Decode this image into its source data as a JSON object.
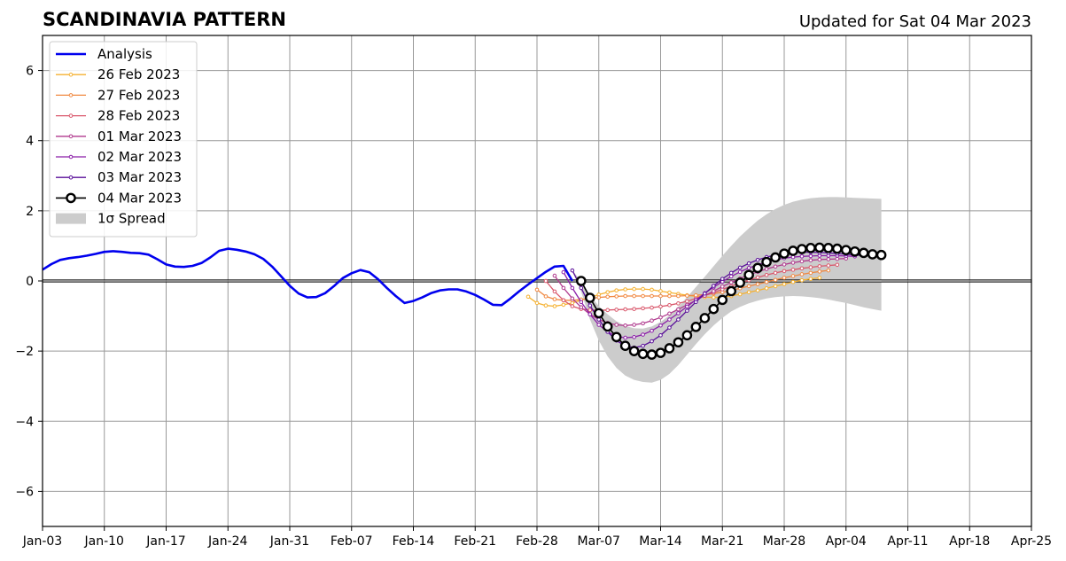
{
  "chart_data": {
    "type": "line",
    "title": "SCANDINAVIA PATTERN",
    "subtitle": "Updated for Sat 04 Mar 2023",
    "ylim": [
      -7,
      7
    ],
    "yticks": [
      -6,
      -4,
      -2,
      0,
      2,
      4,
      6
    ],
    "ytick_labels": [
      "−6",
      "−4",
      "−2",
      "0",
      "2",
      "4",
      "6"
    ],
    "xlim": [
      "2023-01-03",
      "2023-04-25"
    ],
    "xticks": [
      "2023-01-03",
      "2023-01-10",
      "2023-01-17",
      "2023-01-24",
      "2023-01-31",
      "2023-02-07",
      "2023-02-14",
      "2023-02-21",
      "2023-02-28",
      "2023-03-07",
      "2023-03-14",
      "2023-03-21",
      "2023-03-28",
      "2023-04-04",
      "2023-04-11",
      "2023-04-18",
      "2023-04-25"
    ],
    "xtick_labels": [
      "Jan-03",
      "Jan-10",
      "Jan-17",
      "Jan-24",
      "Jan-31",
      "Feb-07",
      "Feb-14",
      "Feb-21",
      "Feb-28",
      "Mar-07",
      "Mar-14",
      "Mar-21",
      "Mar-28",
      "Apr-04",
      "Apr-11",
      "Apr-18",
      "Apr-25"
    ],
    "grid": true,
    "legend_position": "upper-left",
    "colors": {
      "analysis": "#0000ee",
      "spread": "#cccccc",
      "grid": "#999999"
    },
    "series": [
      {
        "name": "Analysis",
        "color": "#0000ee",
        "style": "thick-line",
        "x": [
          "2023-01-03",
          "2023-01-04",
          "2023-01-05",
          "2023-01-06",
          "2023-01-07",
          "2023-01-08",
          "2023-01-09",
          "2023-01-10",
          "2023-01-11",
          "2023-01-12",
          "2023-01-13",
          "2023-01-14",
          "2023-01-15",
          "2023-01-16",
          "2023-01-17",
          "2023-01-18",
          "2023-01-19",
          "2023-01-20",
          "2023-01-21",
          "2023-01-22",
          "2023-01-23",
          "2023-01-24",
          "2023-01-25",
          "2023-01-26",
          "2023-01-27",
          "2023-01-28",
          "2023-01-29",
          "2023-01-30",
          "2023-01-31",
          "2023-02-01",
          "2023-02-02",
          "2023-02-03",
          "2023-02-04",
          "2023-02-05",
          "2023-02-06",
          "2023-02-07",
          "2023-02-08",
          "2023-02-09",
          "2023-02-10",
          "2023-02-11",
          "2023-02-12",
          "2023-02-13",
          "2023-02-14",
          "2023-02-15",
          "2023-02-16",
          "2023-02-17",
          "2023-02-18",
          "2023-02-19",
          "2023-02-20",
          "2023-02-21",
          "2023-02-22",
          "2023-02-23",
          "2023-02-24",
          "2023-02-25",
          "2023-02-26",
          "2023-02-27",
          "2023-02-28",
          "2023-03-01",
          "2023-03-02",
          "2023-03-03",
          "2023-03-04"
        ],
        "y": [
          0.32,
          0.48,
          0.6,
          0.65,
          0.68,
          0.72,
          0.77,
          0.83,
          0.85,
          0.83,
          0.8,
          0.79,
          0.75,
          0.62,
          0.47,
          0.41,
          0.4,
          0.43,
          0.51,
          0.67,
          0.86,
          0.92,
          0.89,
          0.84,
          0.76,
          0.63,
          0.41,
          0.14,
          -0.14,
          -0.36,
          -0.47,
          -0.46,
          -0.35,
          -0.15,
          0.08,
          0.22,
          0.31,
          0.25,
          0.05,
          -0.2,
          -0.43,
          -0.63,
          -0.57,
          -0.47,
          -0.35,
          -0.27,
          -0.24,
          -0.24,
          -0.3,
          -0.4,
          -0.53,
          -0.68,
          -0.69,
          -0.5,
          -0.29,
          -0.1,
          0.08,
          0.26,
          0.41,
          0.43,
          0.0
        ]
      },
      {
        "name": "26 Feb 2023",
        "color": "#f5b130",
        "style": "thin-dotted",
        "start": "2023-02-27",
        "y": [
          -0.45,
          -0.63,
          -0.7,
          -0.72,
          -0.68,
          -0.63,
          -0.55,
          -0.47,
          -0.39,
          -0.32,
          -0.27,
          -0.24,
          -0.23,
          -0.23,
          -0.25,
          -0.29,
          -0.33,
          -0.37,
          -0.41,
          -0.44,
          -0.46,
          -0.47,
          -0.46,
          -0.43,
          -0.38,
          -0.32,
          -0.27,
          -0.21,
          -0.15,
          -0.09,
          -0.03,
          0.02,
          0.06,
          0.09
        ]
      },
      {
        "name": "27 Feb 2023",
        "color": "#f08840",
        "style": "thin-dotted",
        "start": "2023-02-28",
        "y": [
          -0.25,
          -0.44,
          -0.52,
          -0.55,
          -0.55,
          -0.53,
          -0.5,
          -0.47,
          -0.45,
          -0.44,
          -0.43,
          -0.43,
          -0.43,
          -0.43,
          -0.43,
          -0.43,
          -0.43,
          -0.42,
          -0.41,
          -0.39,
          -0.36,
          -0.32,
          -0.27,
          -0.21,
          -0.15,
          -0.09,
          -0.03,
          0.03,
          0.09,
          0.14,
          0.19,
          0.23,
          0.27,
          0.3
        ]
      },
      {
        "name": "28 Feb 2023",
        "color": "#d9576b",
        "style": "thin-dotted",
        "start": "2023-03-01",
        "y": [
          0.0,
          -0.3,
          -0.55,
          -0.72,
          -0.8,
          -0.83,
          -0.84,
          -0.83,
          -0.82,
          -0.81,
          -0.8,
          -0.78,
          -0.76,
          -0.73,
          -0.69,
          -0.64,
          -0.58,
          -0.5,
          -0.42,
          -0.33,
          -0.24,
          -0.15,
          -0.06,
          0.02,
          0.1,
          0.17,
          0.23,
          0.28,
          0.32,
          0.36,
          0.39,
          0.42,
          0.44,
          0.46
        ]
      },
      {
        "name": "01 Mar 2023",
        "color": "#b03a8e",
        "style": "thin-dotted",
        "start": "2023-03-02",
        "y": [
          0.15,
          -0.2,
          -0.5,
          -0.75,
          -0.95,
          -1.1,
          -1.2,
          -1.25,
          -1.27,
          -1.25,
          -1.21,
          -1.13,
          -1.04,
          -0.93,
          -0.81,
          -0.68,
          -0.55,
          -0.42,
          -0.29,
          -0.16,
          -0.04,
          0.07,
          0.17,
          0.26,
          0.34,
          0.41,
          0.47,
          0.52,
          0.56,
          0.59,
          0.61,
          0.62,
          0.63,
          0.64
        ]
      },
      {
        "name": "02 Mar 2023",
        "color": "#8b1ea8",
        "style": "thin-dotted",
        "start": "2023-03-03",
        "y": [
          0.25,
          -0.2,
          -0.6,
          -0.95,
          -1.25,
          -1.45,
          -1.58,
          -1.62,
          -1.6,
          -1.53,
          -1.42,
          -1.27,
          -1.1,
          -0.92,
          -0.73,
          -0.54,
          -0.35,
          -0.18,
          -0.02,
          0.13,
          0.26,
          0.37,
          0.46,
          0.54,
          0.6,
          0.65,
          0.68,
          0.7,
          0.71,
          0.72,
          0.72,
          0.72,
          0.71,
          0.7
        ]
      },
      {
        "name": "03 Mar 2023",
        "color": "#5a0f9a",
        "style": "thin-dotted",
        "start": "2023-03-04",
        "y": [
          0.3,
          -0.2,
          -0.7,
          -1.1,
          -1.45,
          -1.7,
          -1.85,
          -1.9,
          -1.85,
          -1.72,
          -1.55,
          -1.33,
          -1.1,
          -0.85,
          -0.6,
          -0.36,
          -0.14,
          0.06,
          0.23,
          0.38,
          0.5,
          0.6,
          0.68,
          0.74,
          0.78,
          0.81,
          0.82,
          0.82,
          0.81,
          0.8,
          0.78,
          0.76,
          0.74,
          0.72
        ]
      },
      {
        "name": "04 Mar 2023",
        "color": "#000000",
        "style": "circle-markers",
        "start": "2023-03-05",
        "y": [
          0.0,
          -0.48,
          -0.92,
          -1.3,
          -1.6,
          -1.85,
          -2.0,
          -2.08,
          -2.1,
          -2.05,
          -1.92,
          -1.75,
          -1.55,
          -1.31,
          -1.06,
          -0.8,
          -0.54,
          -0.29,
          -0.05,
          0.17,
          0.37,
          0.54,
          0.67,
          0.78,
          0.86,
          0.91,
          0.94,
          0.95,
          0.94,
          0.92,
          0.88,
          0.84,
          0.8,
          0.76,
          0.74
        ]
      },
      {
        "name": "1σ Spread",
        "color": "#cccccc",
        "type": "band",
        "start": "2023-03-04",
        "upper": [
          0.3,
          0.0,
          -0.4,
          -0.72,
          -0.95,
          -1.15,
          -1.28,
          -1.35,
          -1.36,
          -1.3,
          -1.17,
          -0.98,
          -0.74,
          -0.46,
          -0.17,
          0.12,
          0.42,
          0.72,
          1.0,
          1.27,
          1.5,
          1.72,
          1.9,
          2.05,
          2.17,
          2.26,
          2.32,
          2.36,
          2.38,
          2.39,
          2.39,
          2.38,
          2.37,
          2.36,
          2.35,
          2.34
        ],
        "lower": [
          0.3,
          -0.3,
          -1.1,
          -1.7,
          -2.15,
          -2.48,
          -2.7,
          -2.82,
          -2.88,
          -2.9,
          -2.82,
          -2.65,
          -2.4,
          -2.1,
          -1.8,
          -1.52,
          -1.27,
          -1.05,
          -0.87,
          -0.74,
          -0.64,
          -0.56,
          -0.5,
          -0.46,
          -0.44,
          -0.43,
          -0.44,
          -0.46,
          -0.49,
          -0.53,
          -0.58,
          -0.63,
          -0.69,
          -0.75,
          -0.8,
          -0.85
        ]
      }
    ],
    "legend": [
      "Analysis",
      "26 Feb 2023",
      "27 Feb 2023",
      "28 Feb 2023",
      "01 Mar 2023",
      "02 Mar 2023",
      "03 Mar 2023",
      "04 Mar 2023",
      "1σ Spread"
    ]
  }
}
